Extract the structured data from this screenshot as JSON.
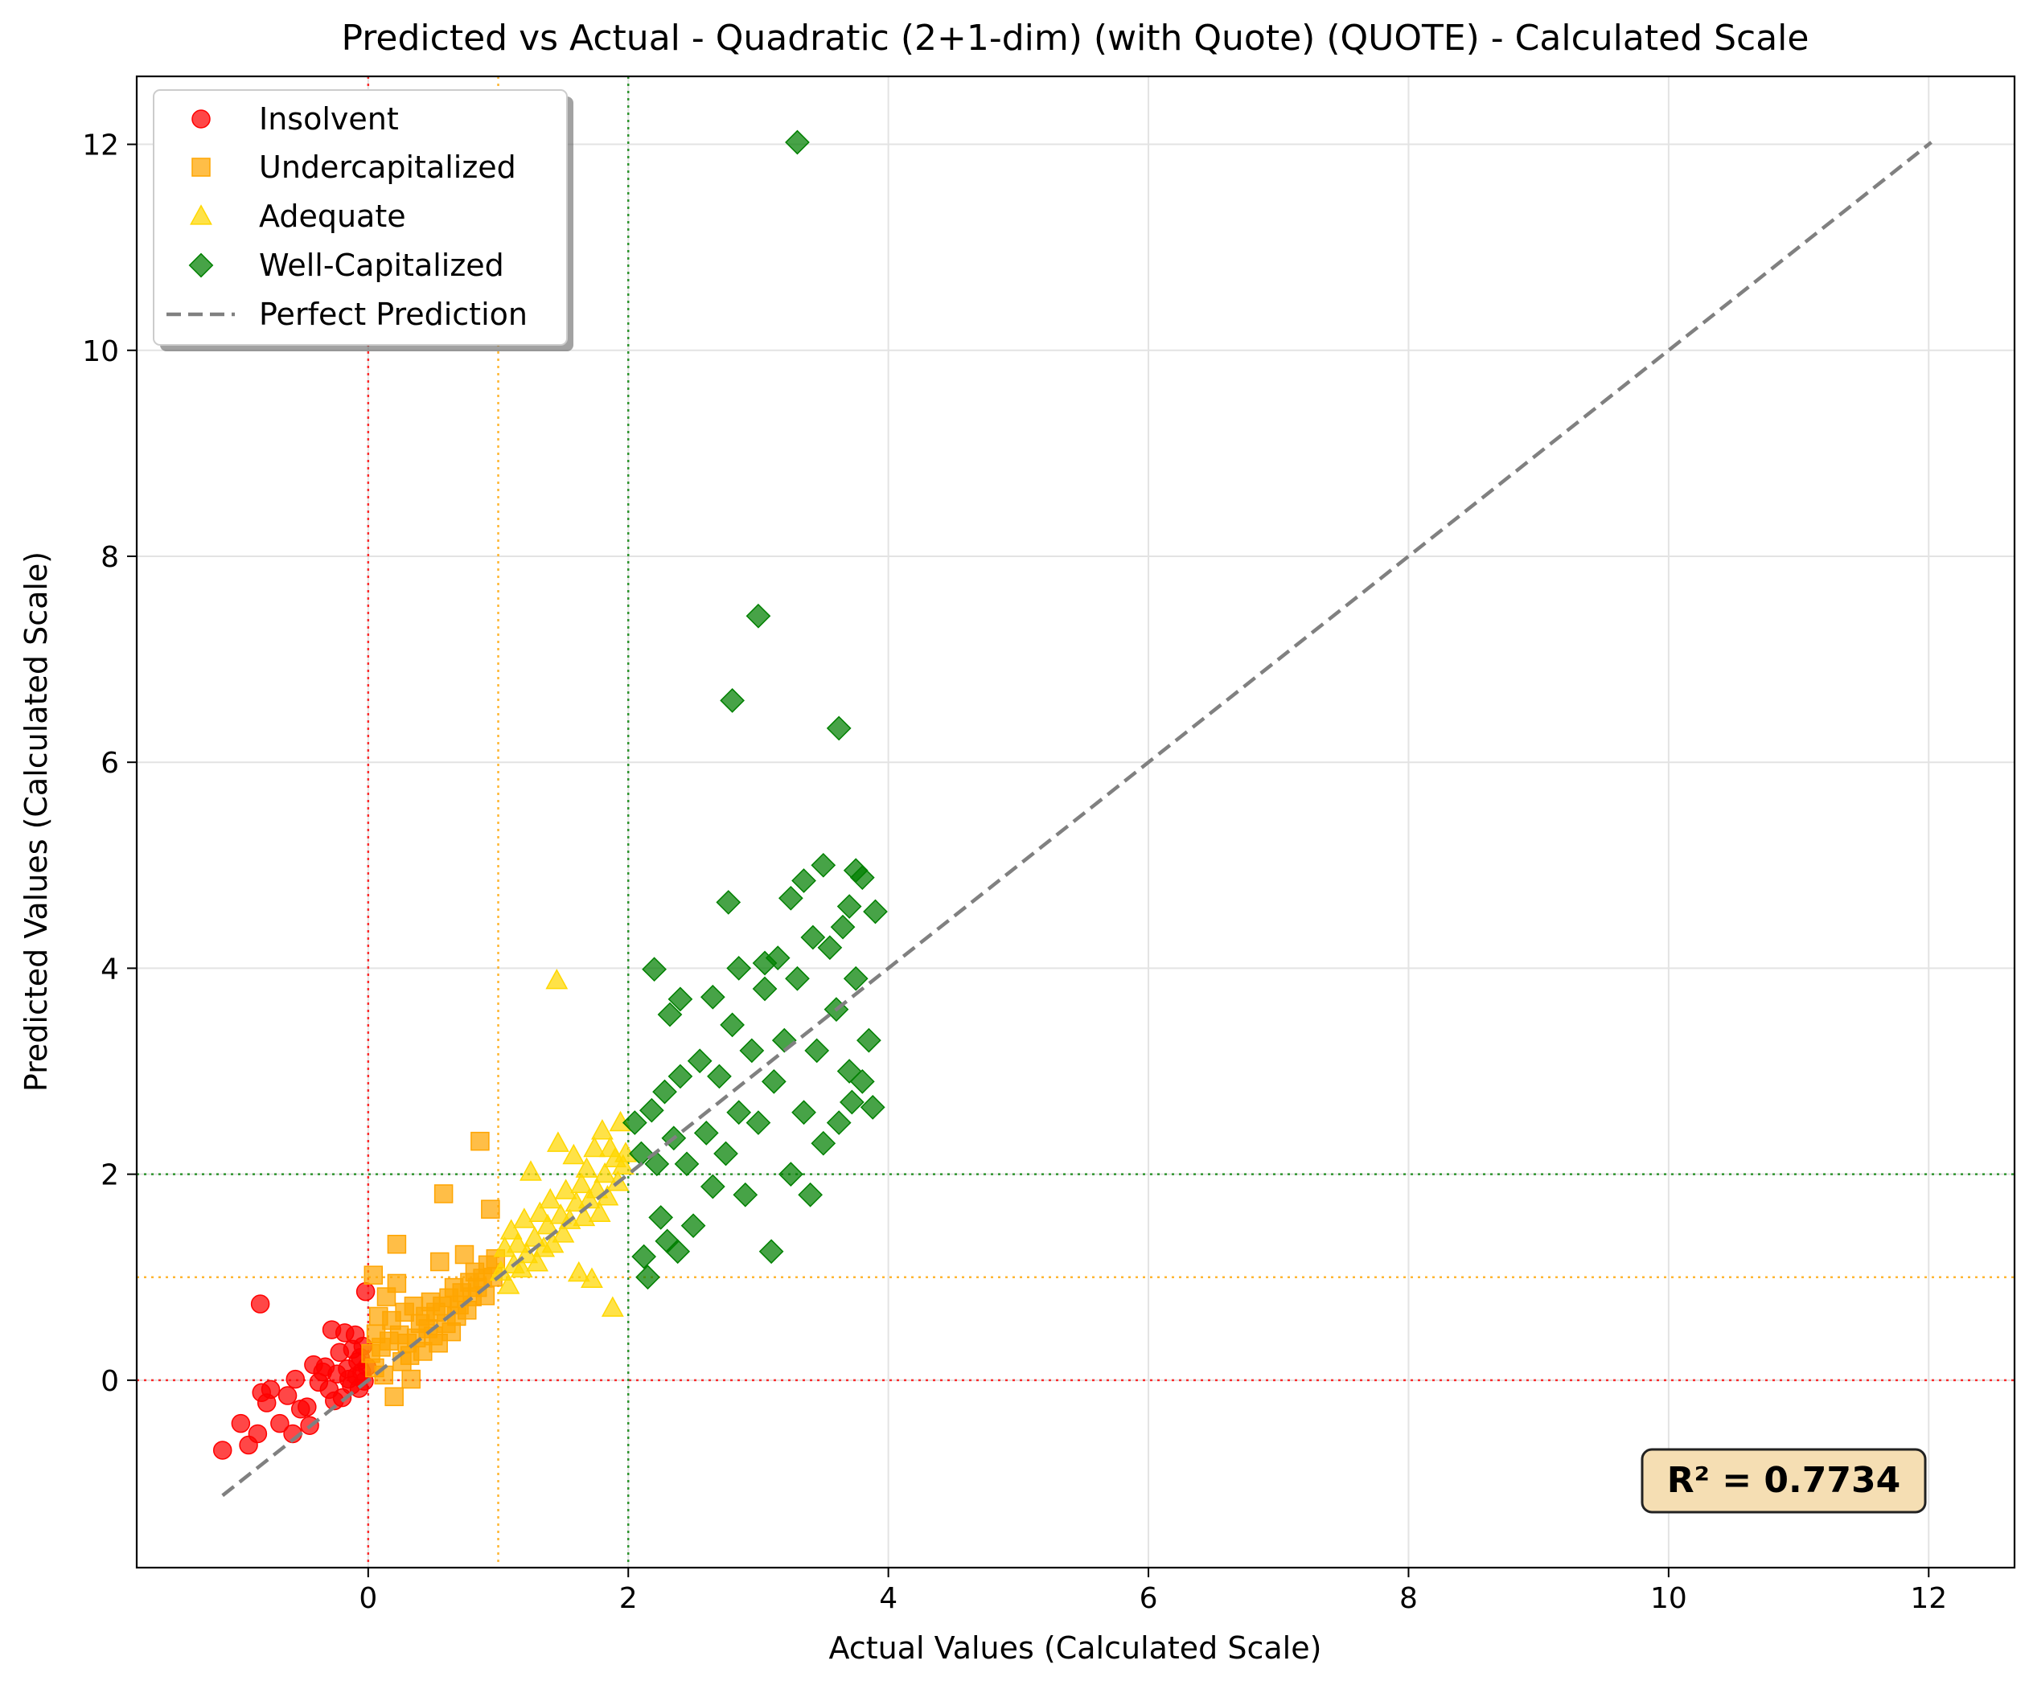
{
  "chart_data": {
    "type": "scatter",
    "title": "Predicted vs Actual - Quadratic (2+1-dim) (with Quote) (QUOTE) - Calculated Scale",
    "xlabel": "Actual Values (Calculated Scale)",
    "ylabel": "Predicted Values (Calculated Scale)",
    "xlim": [
      -1.78,
      12.66
    ],
    "ylim": [
      -1.82,
      12.66
    ],
    "xticks": [
      0,
      2,
      4,
      6,
      8,
      10,
      12
    ],
    "yticks": [
      0,
      2,
      4,
      6,
      8,
      10,
      12
    ],
    "grid": true,
    "legend_position": "upper left",
    "annotation": "R² = 0.7734",
    "thresholds": [
      {
        "value": 0,
        "color": "#ff0000"
      },
      {
        "value": 1,
        "color": "#ffa500"
      },
      {
        "value": 2,
        "color": "#008000"
      }
    ],
    "perfect_prediction": {
      "from": [
        -1.12,
        -1.12
      ],
      "to": [
        12.02,
        12.02
      ],
      "color": "#808080"
    },
    "series": [
      {
        "name": "Insolvent",
        "marker": "circle",
        "color": "#ff0000",
        "points": [
          [
            -1.12,
            -0.68
          ],
          [
            -0.98,
            -0.42
          ],
          [
            -0.92,
            -0.63
          ],
          [
            -0.85,
            -0.52
          ],
          [
            -0.83,
            0.74
          ],
          [
            -0.82,
            -0.12
          ],
          [
            -0.78,
            -0.22
          ],
          [
            -0.75,
            -0.09
          ],
          [
            -0.68,
            -0.42
          ],
          [
            -0.62,
            -0.15
          ],
          [
            -0.58,
            -0.52
          ],
          [
            -0.56,
            0.01
          ],
          [
            -0.52,
            -0.28
          ],
          [
            -0.47,
            -0.26
          ],
          [
            -0.45,
            -0.44
          ],
          [
            -0.42,
            0.15
          ],
          [
            -0.38,
            -0.02
          ],
          [
            -0.35,
            0.08
          ],
          [
            -0.33,
            0.13
          ],
          [
            -0.3,
            -0.09
          ],
          [
            -0.28,
            0.49
          ],
          [
            -0.26,
            -0.2
          ],
          [
            -0.24,
            0.06
          ],
          [
            -0.22,
            0.27
          ],
          [
            -0.2,
            -0.17
          ],
          [
            -0.18,
            0.46
          ],
          [
            -0.16,
            0.11
          ],
          [
            -0.15,
            0.01
          ],
          [
            -0.13,
            -0.05
          ],
          [
            -0.12,
            0.3
          ],
          [
            -0.1,
            0.44
          ],
          [
            -0.09,
            0.04
          ],
          [
            -0.08,
            0.18
          ],
          [
            -0.07,
            -0.08
          ],
          [
            -0.06,
            0.22
          ],
          [
            -0.05,
            0.08
          ],
          [
            -0.04,
            0.33
          ],
          [
            -0.03,
            -0.01
          ],
          [
            -0.02,
            0.86
          ],
          [
            -0.01,
            0.13
          ]
        ]
      },
      {
        "name": "Undercapitalized",
        "marker": "square",
        "color": "#ffa500",
        "points": [
          [
            0.02,
            0.26
          ],
          [
            0.04,
            1.02
          ],
          [
            0.05,
            0.12
          ],
          [
            0.06,
            0.45
          ],
          [
            0.08,
            0.62
          ],
          [
            0.1,
            0.32
          ],
          [
            0.12,
            0.05
          ],
          [
            0.14,
            0.81
          ],
          [
            0.16,
            0.38
          ],
          [
            0.18,
            0.58
          ],
          [
            0.2,
            -0.16
          ],
          [
            0.22,
            0.94
          ],
          [
            0.22,
            1.32
          ],
          [
            0.24,
            0.44
          ],
          [
            0.26,
            0.18
          ],
          [
            0.28,
            0.66
          ],
          [
            0.3,
            0.36
          ],
          [
            0.32,
            0.24
          ],
          [
            0.33,
            0.01
          ],
          [
            0.35,
            0.72
          ],
          [
            0.37,
            0.41
          ],
          [
            0.4,
            0.55
          ],
          [
            0.42,
            0.28
          ],
          [
            0.44,
            0.62
          ],
          [
            0.46,
            0.5
          ],
          [
            0.48,
            0.76
          ],
          [
            0.5,
            0.43
          ],
          [
            0.52,
            0.66
          ],
          [
            0.54,
            0.36
          ],
          [
            0.55,
            1.15
          ],
          [
            0.57,
            0.72
          ],
          [
            0.58,
            1.81
          ],
          [
            0.6,
            0.55
          ],
          [
            0.62,
            0.8
          ],
          [
            0.64,
            0.47
          ],
          [
            0.66,
            0.9
          ],
          [
            0.68,
            0.62
          ],
          [
            0.7,
            0.73
          ],
          [
            0.72,
            0.85
          ],
          [
            0.74,
            1.22
          ],
          [
            0.76,
            0.68
          ],
          [
            0.78,
            0.95
          ],
          [
            0.8,
            0.81
          ],
          [
            0.82,
            1.05
          ],
          [
            0.84,
            0.9
          ],
          [
            0.86,
            2.32
          ],
          [
            0.88,
            0.99
          ],
          [
            0.9,
            0.82
          ],
          [
            0.92,
            1.12
          ],
          [
            0.94,
            1.66
          ],
          [
            0.96,
            1.0
          ],
          [
            0.98,
            1.18
          ]
        ]
      },
      {
        "name": "Adequate",
        "marker": "triangle",
        "color": "#ffd700",
        "points": [
          [
            1.02,
            1.05
          ],
          [
            1.05,
            1.28
          ],
          [
            1.08,
            0.92
          ],
          [
            1.1,
            1.45
          ],
          [
            1.12,
            1.12
          ],
          [
            1.15,
            1.32
          ],
          [
            1.18,
            1.08
          ],
          [
            1.2,
            1.56
          ],
          [
            1.22,
            1.22
          ],
          [
            1.25,
            2.02
          ],
          [
            1.28,
            1.38
          ],
          [
            1.3,
            1.14
          ],
          [
            1.32,
            1.62
          ],
          [
            1.35,
            1.28
          ],
          [
            1.38,
            1.5
          ],
          [
            1.4,
            1.75
          ],
          [
            1.42,
            1.32
          ],
          [
            1.45,
            3.88
          ],
          [
            1.46,
            2.3
          ],
          [
            1.48,
            1.6
          ],
          [
            1.5,
            1.42
          ],
          [
            1.52,
            1.84
          ],
          [
            1.55,
            1.55
          ],
          [
            1.58,
            2.18
          ],
          [
            1.6,
            1.72
          ],
          [
            1.62,
            1.04
          ],
          [
            1.64,
            1.9
          ],
          [
            1.66,
            1.58
          ],
          [
            1.68,
            2.05
          ],
          [
            1.7,
            1.75
          ],
          [
            1.72,
            0.98
          ],
          [
            1.74,
            2.25
          ],
          [
            1.76,
            1.85
          ],
          [
            1.78,
            1.62
          ],
          [
            1.8,
            2.42
          ],
          [
            1.82,
            2.0
          ],
          [
            1.84,
            1.78
          ],
          [
            1.86,
            2.25
          ],
          [
            1.88,
            0.7
          ],
          [
            1.9,
            2.15
          ],
          [
            1.92,
            1.92
          ],
          [
            1.94,
            2.5
          ],
          [
            1.96,
            2.08
          ],
          [
            1.98,
            2.2
          ]
        ]
      },
      {
        "name": "Well-Capitalized",
        "marker": "diamond",
        "color": "#008000",
        "points": [
          [
            3.3,
            12.02
          ],
          [
            3.0,
            7.42
          ],
          [
            2.8,
            6.6
          ],
          [
            3.62,
            6.33
          ],
          [
            2.77,
            4.64
          ],
          [
            3.25,
            4.68
          ],
          [
            3.5,
            5.0
          ],
          [
            3.75,
            4.95
          ],
          [
            3.8,
            4.88
          ],
          [
            3.9,
            4.55
          ],
          [
            3.35,
            4.85
          ],
          [
            2.2,
            3.99
          ],
          [
            2.4,
            3.7
          ],
          [
            2.32,
            3.55
          ],
          [
            2.65,
            3.72
          ],
          [
            2.85,
            4.0
          ],
          [
            3.05,
            4.05
          ],
          [
            2.05,
            2.5
          ],
          [
            2.1,
            2.2
          ],
          [
            2.12,
            1.2
          ],
          [
            2.15,
            1.0
          ],
          [
            2.18,
            2.62
          ],
          [
            2.22,
            2.1
          ],
          [
            2.25,
            1.58
          ],
          [
            2.28,
            2.8
          ],
          [
            2.3,
            1.35
          ],
          [
            2.35,
            2.35
          ],
          [
            2.38,
            1.25
          ],
          [
            2.4,
            2.95
          ],
          [
            2.45,
            2.1
          ],
          [
            2.5,
            1.5
          ],
          [
            2.55,
            3.1
          ],
          [
            2.6,
            2.4
          ],
          [
            2.65,
            1.88
          ],
          [
            2.7,
            2.95
          ],
          [
            2.75,
            2.2
          ],
          [
            2.8,
            3.45
          ],
          [
            2.85,
            2.6
          ],
          [
            2.9,
            1.8
          ],
          [
            2.95,
            3.2
          ],
          [
            3.0,
            2.5
          ],
          [
            3.05,
            3.8
          ],
          [
            3.1,
            1.25
          ],
          [
            3.12,
            2.9
          ],
          [
            3.15,
            4.1
          ],
          [
            3.2,
            3.3
          ],
          [
            3.25,
            2.0
          ],
          [
            3.3,
            3.9
          ],
          [
            3.35,
            2.6
          ],
          [
            3.4,
            1.8
          ],
          [
            3.42,
            4.3
          ],
          [
            3.45,
            3.2
          ],
          [
            3.5,
            2.3
          ],
          [
            3.55,
            4.2
          ],
          [
            3.6,
            3.6
          ],
          [
            3.62,
            2.5
          ],
          [
            3.65,
            4.4
          ],
          [
            3.7,
            3.0
          ],
          [
            3.72,
            2.7
          ],
          [
            3.75,
            3.9
          ],
          [
            3.8,
            2.9
          ],
          [
            3.85,
            3.3
          ],
          [
            3.88,
            2.65
          ],
          [
            3.7,
            4.6
          ]
        ]
      }
    ]
  }
}
